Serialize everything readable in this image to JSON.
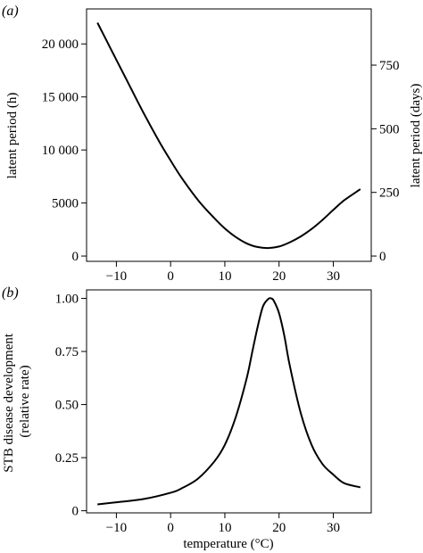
{
  "chart_data": [
    {
      "panel": "(a)",
      "type": "line",
      "xlabel": "",
      "ylabel": "latent period (h)",
      "y2label": "latent period (days)",
      "xlim": [
        -15.5,
        37
      ],
      "ylim": [
        -500,
        23300
      ],
      "xticks": [
        -10,
        0,
        10,
        20,
        30
      ],
      "xtick_labels": [
        "−10",
        "0",
        "10",
        "20",
        "30"
      ],
      "yticks": [
        0,
        5000,
        10000,
        15000,
        20000
      ],
      "ytick_labels": [
        "0",
        "5000",
        "10 000",
        "15 000",
        "20 000"
      ],
      "y2ticks": [
        0,
        250,
        500,
        750
      ],
      "y2tick_labels": [
        "0",
        "250",
        "500",
        "750"
      ],
      "y2_per_y": 0.0416667,
      "grid": false,
      "series": [
        {
          "x": [
            -13.5,
            -11,
            -8,
            -5,
            -2,
            0,
            2,
            5,
            8,
            10,
            12,
            14,
            16,
            18,
            20,
            22,
            24,
            26,
            28,
            30,
            32,
            35
          ],
          "values": [
            22000,
            19500,
            16500,
            13500,
            10700,
            9000,
            7400,
            5300,
            3600,
            2600,
            1800,
            1200,
            850,
            750,
            900,
            1300,
            1850,
            2550,
            3400,
            4350,
            5250,
            6300
          ]
        }
      ]
    },
    {
      "panel": "(b)",
      "type": "line",
      "xlabel": "temperature (°C)",
      "ylabel": "STB disease development\n(relative rate)",
      "xlim": [
        -15.5,
        37
      ],
      "ylim": [
        -0.01,
        1.04
      ],
      "xticks": [
        -10,
        0,
        10,
        20,
        30
      ],
      "xtick_labels": [
        "−10",
        "0",
        "10",
        "20",
        "30"
      ],
      "yticks": [
        0,
        0.25,
        0.5,
        0.75,
        1.0
      ],
      "ytick_labels": [
        "0",
        "0.25",
        "0.50",
        "0.75",
        "1.00"
      ],
      "grid": false,
      "series": [
        {
          "x": [
            -13.5,
            -10,
            -5,
            0,
            2,
            5,
            8,
            10,
            12,
            14,
            15,
            16,
            17,
            18,
            18.5,
            19,
            20,
            21,
            22,
            24,
            26,
            28,
            30,
            32,
            35
          ],
          "values": [
            0.03,
            0.04,
            0.055,
            0.085,
            0.105,
            0.15,
            0.23,
            0.31,
            0.44,
            0.62,
            0.74,
            0.86,
            0.96,
            0.997,
            1.0,
            0.99,
            0.93,
            0.82,
            0.68,
            0.46,
            0.31,
            0.22,
            0.17,
            0.13,
            0.11
          ]
        }
      ]
    }
  ]
}
